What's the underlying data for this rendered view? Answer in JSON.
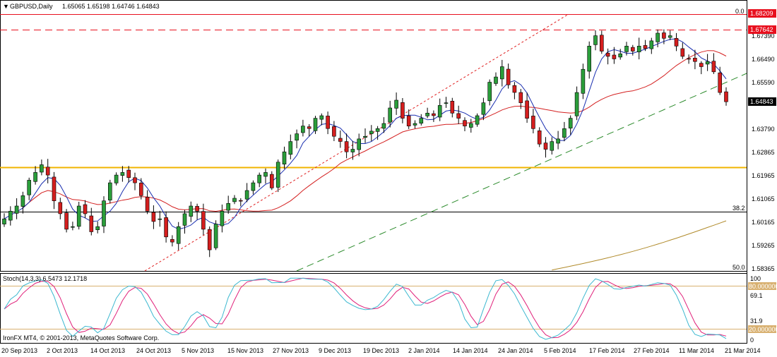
{
  "header": {
    "symbol_label": "GBPUSD,Daily",
    "ohlc_label": "1.65065 1.65198 1.64746 1.64843",
    "collapse_glyph": "▼"
  },
  "main": {
    "price_axis_labels": [
      "1.67390",
      "1.66490",
      "1.65590",
      "1.63790",
      "1.62865",
      "1.61965",
      "1.61065",
      "1.60165",
      "1.59265",
      "1.58365"
    ],
    "badges": [
      {
        "text": "1.68209",
        "color": "#e8101e",
        "text_color": "#ffffff"
      },
      {
        "text": "1.67642",
        "color": "#e8101e",
        "text_color": "#ffffff"
      },
      {
        "text": "1.64843",
        "color": "#000000",
        "text_color": "#ffffff"
      }
    ],
    "fibo_labels": {
      "top": "0.0",
      "mid": "38.2",
      "bottom": "50.0"
    }
  },
  "stochastic": {
    "label": "Stoch(14,3,3) 6.5473 12.1718",
    "axis_labels": [
      "100",
      "69.1",
      "31.9",
      "0"
    ],
    "level_badges": [
      "80.000000",
      "20.000000"
    ],
    "copyright": "IronFX MT4, © 2001-2013, MetaQuotes Software Corp."
  },
  "time_axis": {
    "labels": [
      "20 Sep 2013",
      "2 Oct 2013",
      "14 Oct 2013",
      "24 Oct 2013",
      "5 Nov 2013",
      "15 Nov 2013",
      "27 Nov 2013",
      "9 Dec 2013",
      "19 Dec 2013",
      "2 Jan 2014",
      "14 Jan 2014",
      "24 Jan 2014",
      "5 Feb 2014",
      "17 Feb 2014",
      "27 Feb 2014",
      "11 Mar 2014",
      "21 Mar 2014"
    ]
  },
  "colors": {
    "bull": "#2a9d3a",
    "bear": "#d41e1e",
    "fast_ma": "#1a2fb0",
    "slow_ma": "#d42020",
    "long_ma": "#b08a2a",
    "support": "#f0b400",
    "resistance": "#e02020",
    "stoch_main": "#3cb8d0",
    "stoch_signal": "#e0207a"
  },
  "chart_data": {
    "type": "candlestick",
    "symbol": "GBPUSD",
    "timeframe": "Daily",
    "y_ticks": [
      1.6739,
      1.6649,
      1.6559,
      1.6379,
      1.62865,
      1.61965,
      1.61065,
      1.60165,
      1.59265,
      1.58365
    ],
    "x_ticks": [
      "20 Sep 2013",
      "2 Oct 2013",
      "14 Oct 2013",
      "24 Oct 2013",
      "5 Nov 2013",
      "15 Nov 2013",
      "27 Nov 2013",
      "9 Dec 2013",
      "19 Dec 2013",
      "2 Jan 2014",
      "14 Jan 2014",
      "24 Jan 2014",
      "5 Feb 2014",
      "17 Feb 2014",
      "27 Feb 2014",
      "11 Mar 2014",
      "21 Mar 2014"
    ],
    "horizontal_levels": [
      {
        "price": 1.68209,
        "style": "solid",
        "color": "#e8101e"
      },
      {
        "price": 1.67642,
        "style": "dashed",
        "color": "#e8101e"
      },
      {
        "price": 1.6228,
        "style": "solid",
        "color": "#f0b400"
      },
      {
        "price": 1.6042,
        "style": "solid",
        "color": "#000000"
      }
    ],
    "close_path": [
      1.603,
      1.606,
      1.608,
      1.612,
      1.618,
      1.621,
      1.624,
      1.62,
      1.61,
      1.605,
      1.599,
      1.6,
      1.608,
      1.605,
      1.598,
      1.6,
      1.61,
      1.617,
      1.62,
      1.621,
      1.619,
      1.617,
      1.612,
      1.606,
      1.602,
      1.603,
      1.596,
      1.594,
      1.6,
      1.605,
      1.608,
      1.606,
      1.599,
      1.591,
      1.601,
      1.606,
      1.609,
      1.611,
      1.61,
      1.614,
      1.617,
      1.62,
      1.621,
      1.615,
      1.625,
      1.629,
      1.633,
      1.636,
      1.639,
      1.638,
      1.642,
      1.643,
      1.638,
      1.635,
      1.633,
      1.629,
      1.63,
      1.634,
      1.635,
      1.637,
      1.638,
      1.64,
      1.646,
      1.649,
      1.642,
      1.639,
      1.64,
      1.642,
      1.644,
      1.643,
      1.647,
      1.648,
      1.644,
      1.642,
      1.639,
      1.64,
      1.643,
      1.648,
      1.656,
      1.658,
      1.662,
      1.655,
      1.652,
      1.648,
      1.642,
      1.638,
      1.632,
      1.63,
      1.633,
      1.634,
      1.638,
      1.642,
      1.652,
      1.661,
      1.67,
      1.674,
      1.668,
      1.666,
      1.665,
      1.667,
      1.67,
      1.668,
      1.67,
      1.669,
      1.672,
      1.675,
      1.673,
      1.674,
      1.67,
      1.666,
      1.665,
      1.664,
      1.662,
      1.664,
      1.66,
      1.652,
      1.6484
    ],
    "stochastic": {
      "period": "14,3,3",
      "main": 6.5473,
      "signal": 12.1718,
      "levels": [
        80,
        20
      ]
    }
  }
}
